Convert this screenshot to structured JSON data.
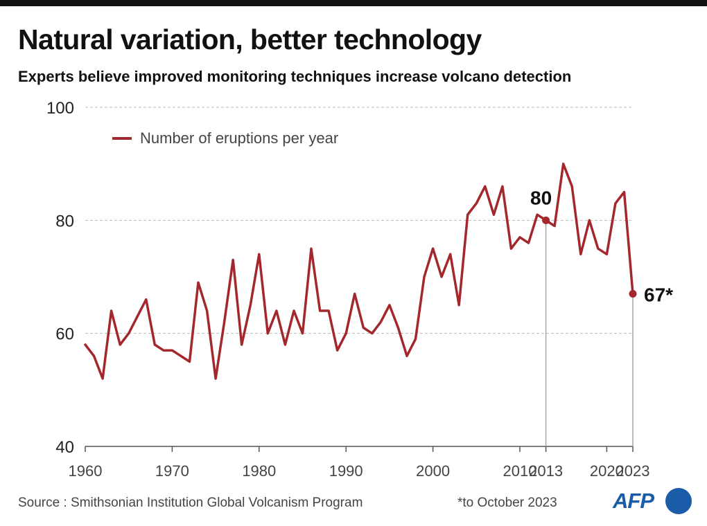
{
  "header": {
    "title": "Natural variation, better technology",
    "subtitle": "Experts believe improved monitoring techniques increase volcano detection"
  },
  "footer": {
    "source": "Source : Smithsonian Institution Global Volcanism Program",
    "note": "*to October 2023",
    "logo": "AFP"
  },
  "colors": {
    "series": "#a3272c",
    "grid": "#bbbbbb",
    "highlight_line": "#9aaab0",
    "axis": "#555555",
    "logo": "#1a5ca8"
  },
  "chart_data": {
    "type": "line",
    "title": "Natural variation, better technology",
    "subtitle": "Experts believe improved monitoring techniques increase volcano detection",
    "xlabel": "",
    "ylabel": "",
    "xlim": [
      1960,
      2023
    ],
    "ylim": [
      40,
      100
    ],
    "yticks": [
      40,
      60,
      80,
      100
    ],
    "xticks": [
      1960,
      1970,
      1980,
      1990,
      2000,
      2010,
      2013,
      2020,
      2023
    ],
    "grid": "horizontal dashed",
    "legend_position": "top-left",
    "series": [
      {
        "name": "Number of eruptions per year",
        "x": [
          1960,
          1961,
          1962,
          1963,
          1964,
          1965,
          1966,
          1967,
          1968,
          1969,
          1970,
          1971,
          1972,
          1973,
          1974,
          1975,
          1976,
          1977,
          1978,
          1979,
          1980,
          1981,
          1982,
          1983,
          1984,
          1985,
          1986,
          1987,
          1988,
          1989,
          1990,
          1991,
          1992,
          1993,
          1994,
          1995,
          1996,
          1997,
          1998,
          1999,
          2000,
          2001,
          2002,
          2003,
          2004,
          2005,
          2006,
          2007,
          2008,
          2009,
          2010,
          2011,
          2012,
          2013,
          2014,
          2015,
          2016,
          2017,
          2018,
          2019,
          2020,
          2021,
          2022,
          2023
        ],
        "values": [
          58,
          56,
          52,
          64,
          58,
          60,
          63,
          66,
          58,
          57,
          57,
          56,
          55,
          69,
          64,
          52,
          62,
          73,
          58,
          65,
          74,
          60,
          64,
          58,
          64,
          60,
          75,
          64,
          64,
          57,
          60,
          67,
          61,
          60,
          62,
          65,
          61,
          56,
          59,
          70,
          75,
          70,
          74,
          65,
          81,
          83,
          86,
          81,
          86,
          75,
          77,
          76,
          81,
          80,
          79,
          90,
          86,
          74,
          80,
          75,
          74,
          83,
          85,
          67
        ]
      }
    ],
    "annotations": [
      {
        "x": 2013,
        "y": 80,
        "label": "80"
      },
      {
        "x": 2023,
        "y": 67,
        "label": "67*"
      }
    ]
  }
}
